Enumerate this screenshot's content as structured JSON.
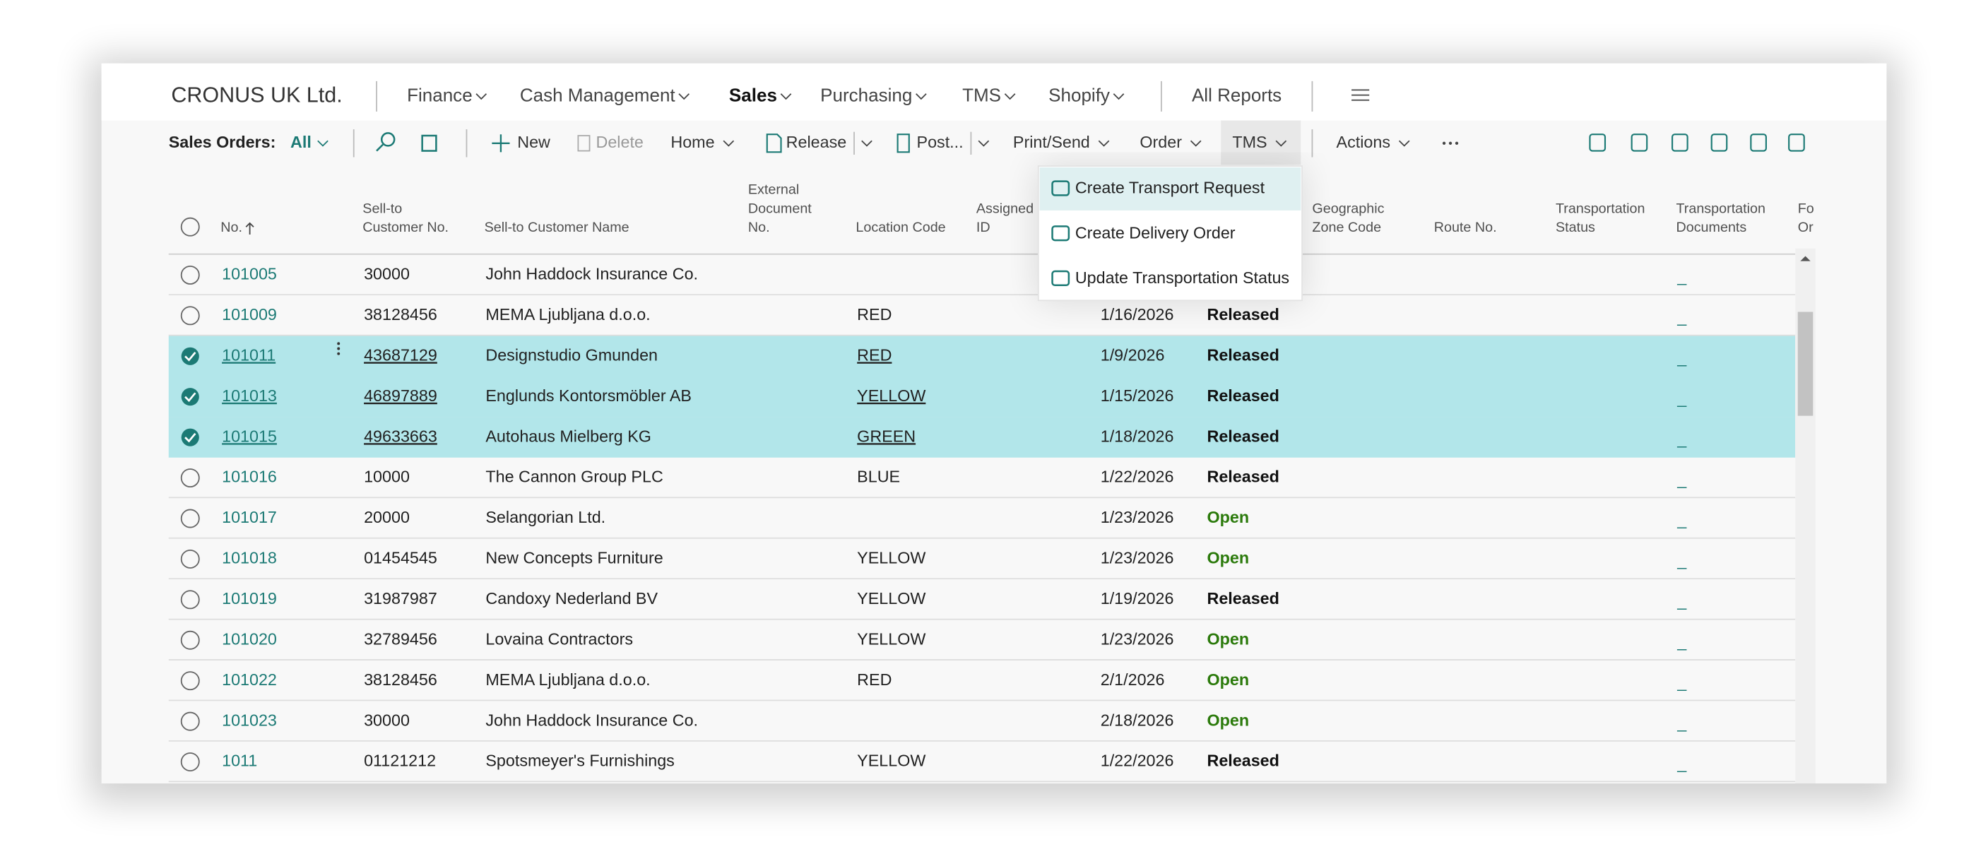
{
  "header": {
    "company": "CRONUS UK Ltd.",
    "nav": [
      "Finance",
      "Cash Management",
      "Sales",
      "Purchasing",
      "TMS",
      "Shopify"
    ],
    "all_reports": "All Reports"
  },
  "toolbar": {
    "page_label": "Sales Orders:",
    "filter": "All",
    "actions": [
      "New",
      "Delete",
      "Home",
      "Release",
      "Post...",
      "Print/Send",
      "Order",
      "TMS",
      "Actions"
    ]
  },
  "menu": {
    "items": [
      "Create Transport Request",
      "Create Delivery Order",
      "Update Transportation Status"
    ]
  },
  "table": {
    "columns": [
      [
        "No."
      ],
      [
        "Sell-to",
        "Customer No."
      ],
      [
        "Sell-to Customer Name"
      ],
      [
        "External",
        "Document",
        "No."
      ],
      [
        "Location Code"
      ],
      [
        "Assigned",
        "ID"
      ],
      [
        "Geographic",
        "Zone Code"
      ],
      [
        "Route No."
      ],
      [
        "Transportation",
        "Status"
      ],
      [
        "Transportation",
        "Documents"
      ],
      [
        "Fo",
        "Or"
      ]
    ],
    "rows": [
      {
        "selected": false,
        "no": "101005",
        "customer_no": "30000",
        "name": "John Haddock Insurance Co.",
        "location": null,
        "date": null,
        "status": null,
        "documents": "_"
      },
      {
        "selected": false,
        "no": "101009",
        "customer_no": "38128456",
        "name": "MEMA Ljubljana d.o.o.",
        "location": "RED",
        "date": "1/16/2026",
        "status": "Released",
        "documents": "_"
      },
      {
        "selected": true,
        "no": "101011",
        "customer_no": "43687129",
        "name": "Designstudio Gmunden",
        "location": "RED",
        "date": "1/9/2026",
        "status": "Released",
        "documents": "_"
      },
      {
        "selected": true,
        "no": "101013",
        "customer_no": "46897889",
        "name": "Englunds Kontorsmöbler AB",
        "location": "YELLOW",
        "date": "1/15/2026",
        "status": "Released",
        "documents": "_"
      },
      {
        "selected": true,
        "no": "101015",
        "customer_no": "49633663",
        "name": "Autohaus Mielberg KG",
        "location": "GREEN",
        "date": "1/18/2026",
        "status": "Released",
        "documents": "_"
      },
      {
        "selected": false,
        "no": "101016",
        "customer_no": "10000",
        "name": "The Cannon Group PLC",
        "location": "BLUE",
        "date": "1/22/2026",
        "status": "Released",
        "documents": "_"
      },
      {
        "selected": false,
        "no": "101017",
        "customer_no": "20000",
        "name": "Selangorian Ltd.",
        "location": null,
        "date": "1/23/2026",
        "status": "Open",
        "documents": "_"
      },
      {
        "selected": false,
        "no": "101018",
        "customer_no": "01454545",
        "name": "New Concepts Furniture",
        "location": "YELLOW",
        "date": "1/23/2026",
        "status": "Open",
        "documents": "_"
      },
      {
        "selected": false,
        "no": "101019",
        "customer_no": "31987987",
        "name": "Candoxy Nederland BV",
        "location": "YELLOW",
        "date": "1/19/2026",
        "status": "Released",
        "documents": "_"
      },
      {
        "selected": false,
        "no": "101020",
        "customer_no": "32789456",
        "name": "Lovaina Contractors",
        "location": "YELLOW",
        "date": "1/23/2026",
        "status": "Open",
        "documents": "_"
      },
      {
        "selected": false,
        "no": "101022",
        "customer_no": "38128456",
        "name": "MEMA Ljubljana d.o.o.",
        "location": "RED",
        "date": "2/1/2026",
        "status": "Open",
        "documents": "_"
      },
      {
        "selected": false,
        "no": "101023",
        "customer_no": "30000",
        "name": "John Haddock Insurance Co.",
        "location": null,
        "date": "2/18/2026",
        "status": "Open",
        "documents": "_"
      },
      {
        "selected": false,
        "no": "1011",
        "customer_no": "01121212",
        "name": "Spotsmeyer's Furnishings",
        "location": "YELLOW",
        "date": "1/22/2026",
        "status": "Released",
        "documents": "_"
      }
    ]
  }
}
